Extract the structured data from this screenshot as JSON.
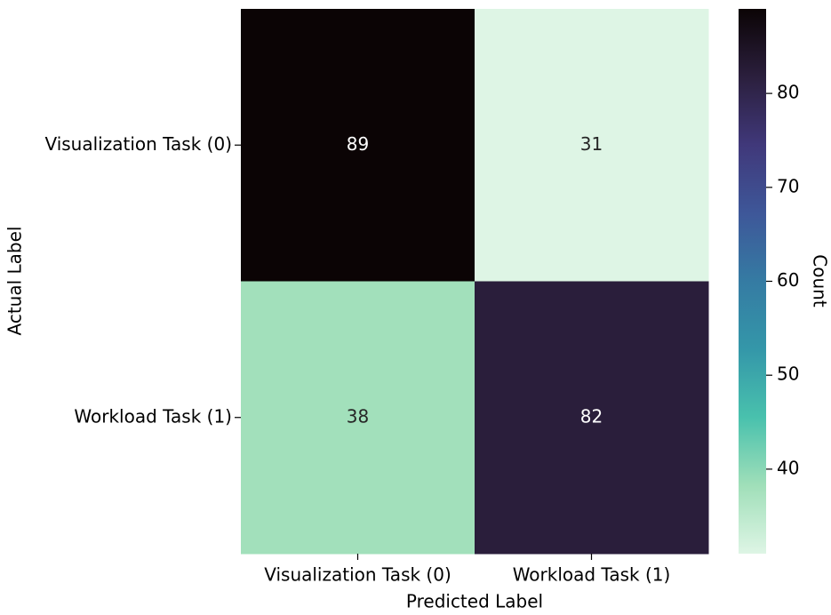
{
  "chart_data": {
    "type": "heatmap",
    "x_categories": [
      "Visualization Task (0)",
      "Workload Task (1)"
    ],
    "y_categories": [
      "Visualization Task (0)",
      "Workload Task (1)"
    ],
    "values": [
      [
        89,
        31
      ],
      [
        38,
        82
      ]
    ],
    "xlabel": "Predicted Label",
    "ylabel": "Actual Label",
    "colorbar_label": "Count",
    "clim": [
      31,
      89
    ],
    "cticks": [
      40,
      50,
      60,
      70,
      80
    ],
    "colormap": [
      "#def5e5",
      "#a0dfb9",
      "#49c1ad",
      "#3497a9",
      "#357ba3",
      "#3e5799",
      "#40387a",
      "#2b1f3d",
      "#0b0405"
    ]
  }
}
